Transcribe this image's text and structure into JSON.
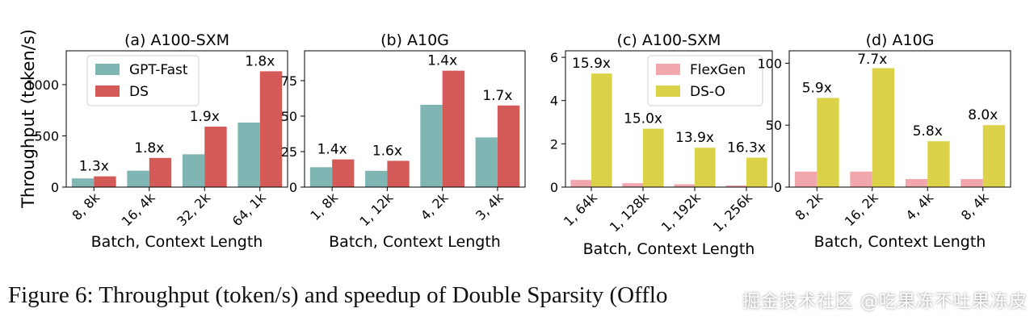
{
  "colors": {
    "gpt_fast": "#7fb6b4",
    "ds": "#d45a58",
    "flexgen": "#f2a6ad",
    "ds_o": "#dcd24a"
  },
  "ylabel_shared": "Throughput (token/s)",
  "caption": "Figure 6: Throughput (token/s) and speedup of Double Sparsity (Offlo",
  "watermark": "掘金技术社区 @吃果冻不吐果冻皮",
  "chart_data": [
    {
      "type": "bar",
      "title": "(a) A100-SXM",
      "xlabel": "Batch, Context Length",
      "ylabel": "Throughput (token/s)",
      "categories": [
        "8, 8k",
        "16, 4k",
        "32, 2k",
        "64, 1k"
      ],
      "series": [
        {
          "name": "GPT-Fast",
          "color": "#7fb6b4",
          "values": [
            85,
            160,
            320,
            630
          ]
        },
        {
          "name": "DS",
          "color": "#d45a58",
          "values": [
            105,
            285,
            590,
            1130
          ]
        }
      ],
      "annotations": [
        "1.3x",
        "1.8x",
        "1.9x",
        "1.8x"
      ],
      "ylim": [
        0,
        1330
      ],
      "yticks": [
        0,
        500,
        1000
      ],
      "legend": "top-left",
      "grid": false
    },
    {
      "type": "bar",
      "title": "(b) A10G",
      "xlabel": "Batch, Context Length",
      "categories": [
        "1, 8k",
        "1, 12k",
        "4, 2k",
        "3, 4k"
      ],
      "series": [
        {
          "color": "#7fb6b4",
          "values": [
            14,
            11.5,
            58,
            35
          ]
        },
        {
          "color": "#d45a58",
          "values": [
            19.5,
            18.5,
            82,
            57.5
          ]
        }
      ],
      "annotations": [
        "1.4x",
        "1.6x",
        "1.4x",
        "1.7x"
      ],
      "ylim": [
        0,
        96
      ],
      "yticks": [
        0,
        25,
        50,
        75
      ],
      "grid": false
    },
    {
      "type": "bar",
      "title": "(c) A100-SXM",
      "xlabel": "Batch, Context Length",
      "categories": [
        "1, 64k",
        "1, 128k",
        "1, 192k",
        "1, 256k"
      ],
      "series": [
        {
          "name": "FlexGen",
          "color": "#f2a6ad",
          "values": [
            0.33,
            0.18,
            0.13,
            0.08
          ]
        },
        {
          "name": "DS-O",
          "color": "#dcd24a",
          "values": [
            5.25,
            2.7,
            1.82,
            1.36
          ]
        }
      ],
      "annotations": [
        "15.9x",
        "15.0x",
        "13.9x",
        "16.3x"
      ],
      "ylim": [
        0,
        6.3
      ],
      "yticks": [
        0,
        2,
        4,
        6
      ],
      "legend": "top-right",
      "grid": false
    },
    {
      "type": "bar",
      "title": "(d) A10G",
      "xlabel": "Batch, Context Length",
      "categories": [
        "8, 2k",
        "16, 2k",
        "4, 4k",
        "8, 4k"
      ],
      "series": [
        {
          "color": "#f2a6ad",
          "values": [
            12.5,
            12.5,
            6.5,
            6.5
          ]
        },
        {
          "color": "#dcd24a",
          "values": [
            72,
            96,
            37,
            50
          ]
        }
      ],
      "annotations": [
        "5.9x",
        "7.7x",
        "5.8x",
        "8.0x"
      ],
      "ylim": [
        0,
        110
      ],
      "yticks": [
        0,
        50,
        100
      ],
      "grid": false
    }
  ]
}
